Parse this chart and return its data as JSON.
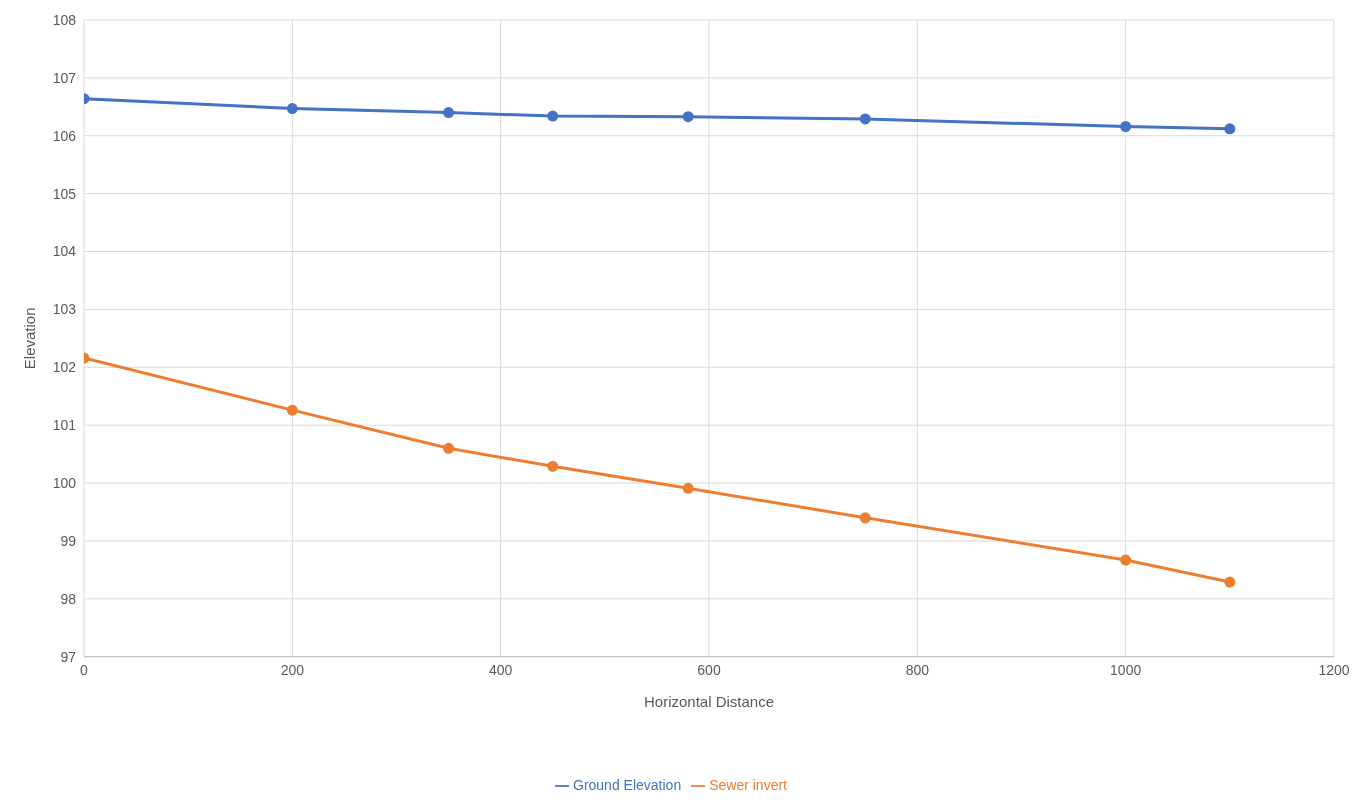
{
  "chart_data": {
    "type": "line",
    "xlabel": "Horizontal Distance",
    "ylabel": "Elevation",
    "x": [
      0,
      200,
      350,
      450,
      580,
      750,
      1000,
      1100
    ],
    "series": [
      {
        "name": "Ground Elevation",
        "color": "#4472c4",
        "values": [
          106.64,
          106.47,
          106.4,
          106.34,
          106.33,
          106.29,
          106.16,
          106.12
        ]
      },
      {
        "name": "Sewer invert",
        "color": "#ed7d31",
        "values": [
          102.16,
          101.26,
          100.6,
          100.29,
          99.91,
          99.4,
          98.67,
          98.29
        ]
      }
    ],
    "xlim": [
      0,
      1200
    ],
    "xticks": [
      0,
      200,
      400,
      600,
      800,
      1000,
      1200
    ],
    "ylim": [
      97,
      108
    ],
    "yticks": [
      97,
      98,
      99,
      100,
      101,
      102,
      103,
      104,
      105,
      106,
      107,
      108
    ],
    "grid": true,
    "legend": "bottom",
    "marker": "circle",
    "line_style": "solid"
  }
}
